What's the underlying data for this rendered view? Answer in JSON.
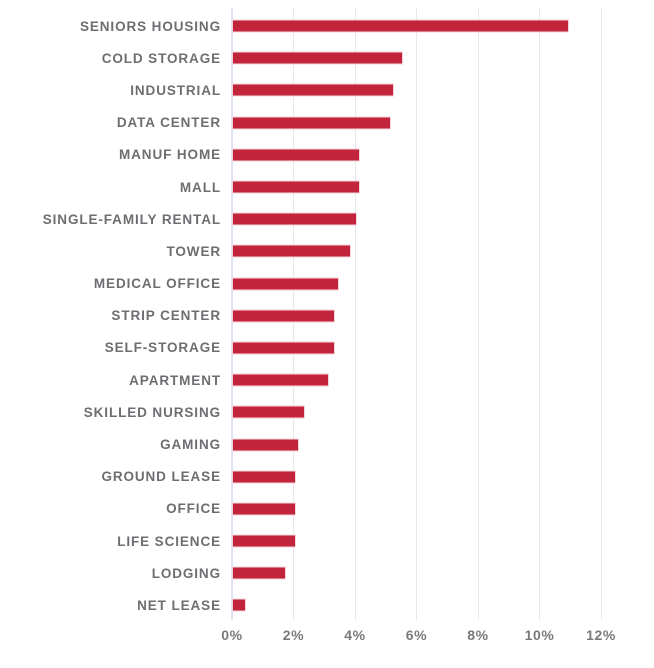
{
  "chart_data": {
    "type": "bar",
    "orientation": "horizontal",
    "title": "",
    "categories": [
      "SENIORS HOUSING",
      "COLD STORAGE",
      "INDUSTRIAL",
      "DATA CENTER",
      "MANUF HOME",
      "MALL",
      "SINGLE-FAMILY RENTAL",
      "TOWER",
      "MEDICAL OFFICE",
      "STRIP CENTER",
      "SELF-STORAGE",
      "APARTMENT",
      "SKILLED NURSING",
      "GAMING",
      "GROUND LEASE",
      "OFFICE",
      "LIFE SCIENCE",
      "LODGING",
      "NET LEASE"
    ],
    "values": [
      10.9,
      5.5,
      5.2,
      5.1,
      4.1,
      4.1,
      4.0,
      3.8,
      3.4,
      3.3,
      3.3,
      3.1,
      2.3,
      2.1,
      2.0,
      2.0,
      2.0,
      1.7,
      0.4
    ],
    "unit": "%",
    "x_ticks": [
      "0%",
      "2%",
      "4%",
      "6%",
      "8%",
      "10%",
      "12%"
    ],
    "x_tick_values": [
      0,
      2,
      4,
      6,
      8,
      10,
      12
    ],
    "xlim": [
      0,
      13.7
    ],
    "grid": true,
    "legend": false,
    "colors": {
      "bar": "#c2243c",
      "bar_outline": "#f4ccd4",
      "category_label": "#6d6e71",
      "tick_label": "#797a7d",
      "gridline": "#e7e7e9",
      "zero_axis_line": "#dde1f0",
      "background": "#ffffff"
    }
  }
}
